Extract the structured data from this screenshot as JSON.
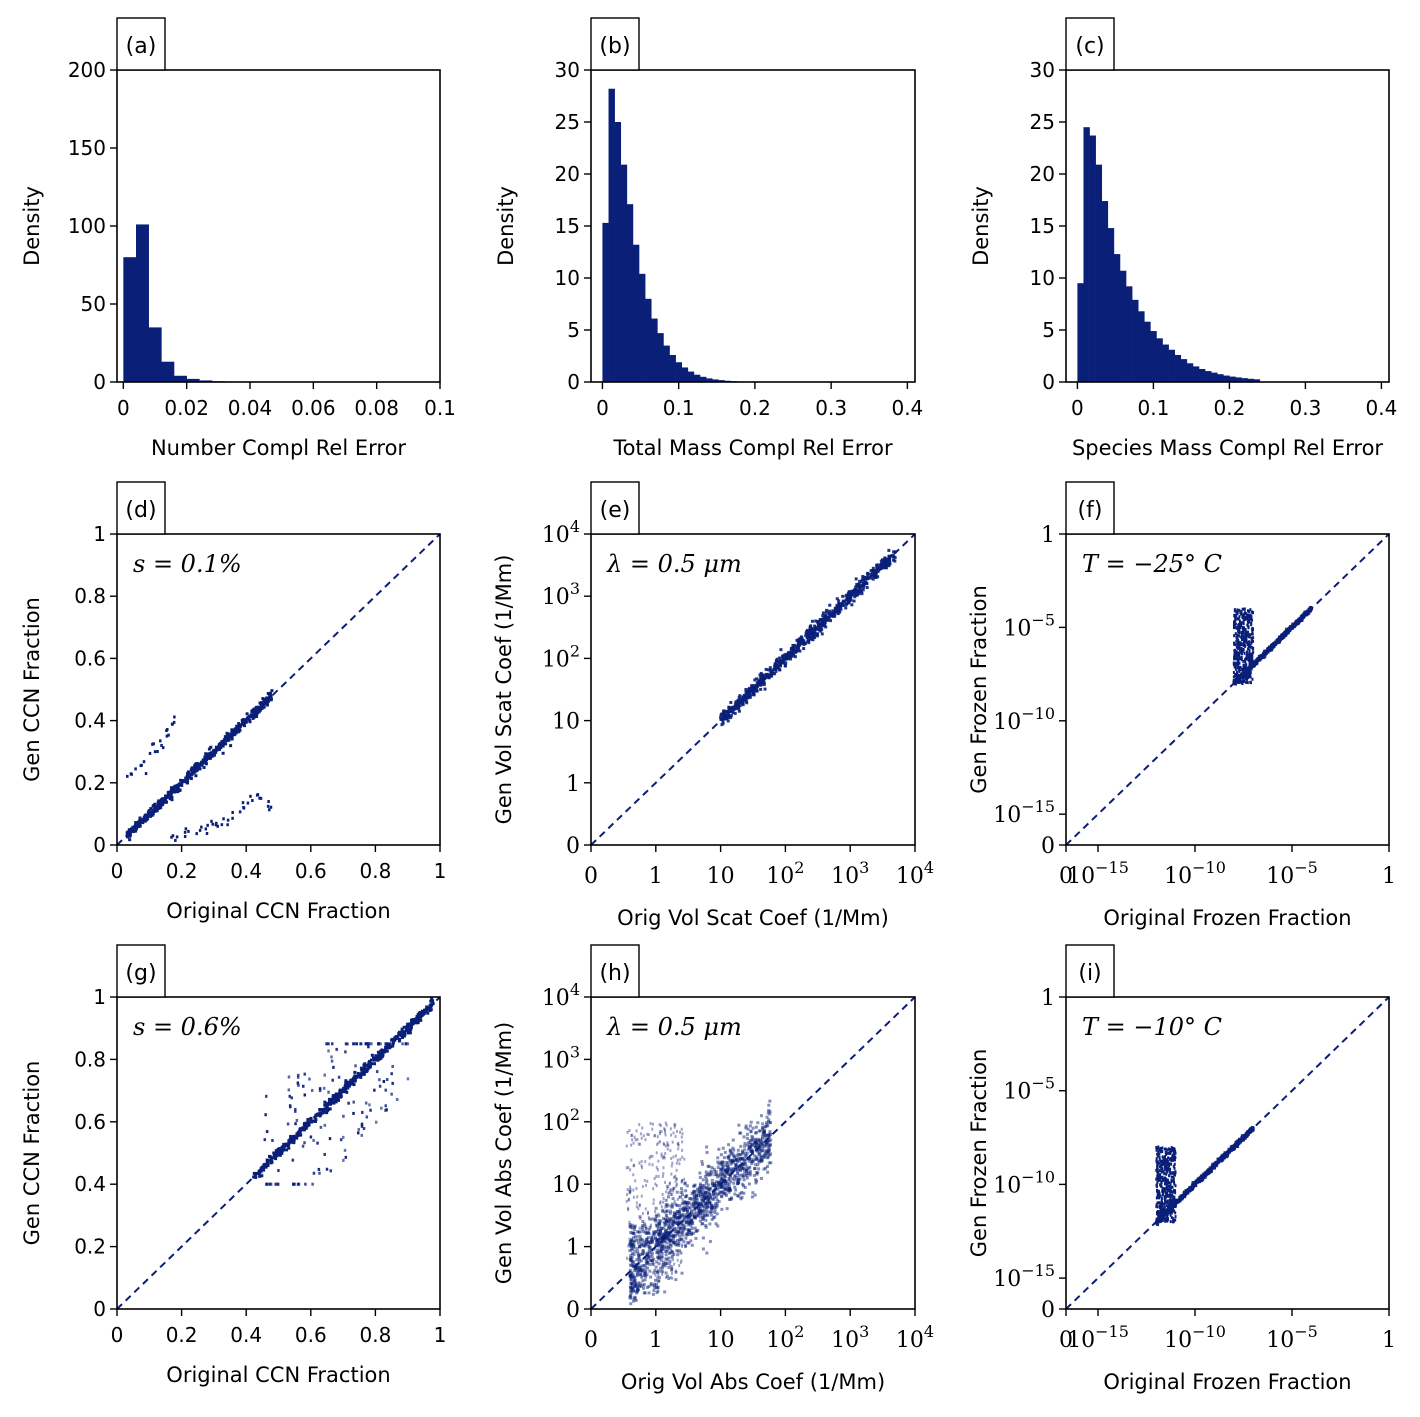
{
  "colors": {
    "series": "#0a1f78",
    "axis": "#000000",
    "background": "#ffffff"
  },
  "chart_data": [
    {
      "id": "a",
      "panel_label": "(a)",
      "type": "bar",
      "xlabel": "Number Compl Rel Error",
      "ylabel": "Density",
      "xlim": [
        -0.002,
        0.1
      ],
      "ylim": [
        0,
        200
      ],
      "xticks": [
        0,
        0.02,
        0.04,
        0.06,
        0.08,
        0.1
      ],
      "xtick_labels": [
        "0",
        "0.02",
        "0.04",
        "0.06",
        "0.08",
        "0.1"
      ],
      "yticks": [
        0,
        50,
        100,
        150,
        200
      ],
      "ytick_labels": [
        "0",
        "50",
        "100",
        "150",
        "200"
      ],
      "bin_width": 0.004,
      "bin_start": 0,
      "values": [
        80,
        101,
        35,
        13,
        4,
        2,
        1,
        0.5,
        0.3,
        0.2,
        0.1,
        0.1
      ]
    },
    {
      "id": "b",
      "panel_label": "(b)",
      "type": "bar",
      "xlabel": "Total Mass Compl Rel Error",
      "ylabel": "Density",
      "xlim": [
        -0.015,
        0.41
      ],
      "ylim": [
        0,
        30
      ],
      "xticks": [
        0,
        0.1,
        0.2,
        0.3,
        0.4
      ],
      "xtick_labels": [
        "0",
        "0.1",
        "0.2",
        "0.3",
        "0.4"
      ],
      "yticks": [
        0,
        5,
        10,
        15,
        20,
        25,
        30
      ],
      "ytick_labels": [
        "0",
        "5",
        "10",
        "15",
        "20",
        "25",
        "30"
      ],
      "bin_width": 0.008,
      "bin_start": 0,
      "values": [
        15.3,
        28.2,
        25.0,
        20.9,
        17.1,
        13.2,
        10.4,
        8.0,
        6.1,
        4.7,
        3.5,
        2.6,
        1.9,
        1.4,
        1.0,
        0.7,
        0.5,
        0.35,
        0.25,
        0.18,
        0.12,
        0.08,
        0.05,
        0.03
      ]
    },
    {
      "id": "c",
      "panel_label": "(c)",
      "type": "bar",
      "xlabel": "Species Mass Compl Rel Error",
      "ylabel": "Density",
      "xlim": [
        -0.015,
        0.41
      ],
      "ylim": [
        0,
        30
      ],
      "xticks": [
        0,
        0.1,
        0.2,
        0.3,
        0.4
      ],
      "xtick_labels": [
        "0",
        "0.1",
        "0.2",
        "0.3",
        "0.4"
      ],
      "yticks": [
        0,
        5,
        10,
        15,
        20,
        25,
        30
      ],
      "ytick_labels": [
        "0",
        "5",
        "10",
        "15",
        "20",
        "25",
        "30"
      ],
      "bin_width": 0.008,
      "bin_start": 0,
      "values": [
        9.5,
        24.5,
        23.7,
        20.9,
        17.4,
        14.8,
        12.3,
        10.7,
        9.2,
        7.9,
        6.8,
        5.8,
        4.9,
        4.2,
        3.6,
        3.1,
        2.6,
        2.2,
        1.8,
        1.5,
        1.25,
        1.05,
        0.9,
        0.75,
        0.62,
        0.52,
        0.44,
        0.37,
        0.31,
        0.26
      ]
    },
    {
      "id": "d",
      "panel_label": "(d)",
      "type": "scatter",
      "annotation": "s = 0.1%",
      "xlabel": "Original CCN Fraction",
      "ylabel": "Gen CCN Fraction",
      "xlim": [
        0,
        1
      ],
      "ylim": [
        0,
        1
      ],
      "xticks": [
        0,
        0.2,
        0.4,
        0.6,
        0.8,
        1
      ],
      "xtick_labels": [
        "0",
        "0.2",
        "0.4",
        "0.6",
        "0.8",
        "1"
      ],
      "yticks": [
        0,
        0.2,
        0.4,
        0.6,
        0.8,
        1
      ],
      "ytick_labels": [
        "0",
        "0.2",
        "0.4",
        "0.6",
        "0.8",
        "1"
      ],
      "reference_line": "y = x (dashed)",
      "main_band": {
        "x_range": [
          0.03,
          0.48
        ],
        "relation": "y ≈ x"
      },
      "clusters": [
        {
          "x": [
            0.05,
            0.08,
            0.11,
            0.13,
            0.15,
            0.17
          ],
          "y": [
            0.23,
            0.26,
            0.3,
            0.33,
            0.36,
            0.4
          ]
        },
        {
          "x": [
            0.18,
            0.22,
            0.25,
            0.28,
            0.31,
            0.35,
            0.38,
            0.41,
            0.44,
            0.48
          ],
          "y": [
            0.02,
            0.04,
            0.05,
            0.06,
            0.07,
            0.09,
            0.11,
            0.14,
            0.15,
            0.14
          ]
        }
      ]
    },
    {
      "id": "e",
      "panel_label": "(e)",
      "type": "scatter",
      "annotation": "λ = 0.5 μm",
      "xlabel": "Orig Vol Scat Coef (1/Mm)",
      "ylabel": "Gen Vol Scat Coef (1/Mm)",
      "xscale": "symlog",
      "yscale": "symlog",
      "xlim": [
        0,
        10000
      ],
      "ylim": [
        0,
        10000
      ],
      "xticks": [
        0,
        1,
        10,
        100,
        1000,
        10000
      ],
      "xtick_labels": [
        "0",
        "1",
        "10",
        "10^2",
        "10^3",
        "10^4"
      ],
      "yticks": [
        0,
        1,
        10,
        100,
        1000,
        10000
      ],
      "ytick_labels": [
        "0",
        "1",
        "10",
        "10^2",
        "10^3",
        "10^4"
      ],
      "reference_line": "y = x (dashed)",
      "main_band": {
        "x_range": [
          10,
          5000
        ],
        "relation": "y ≈ x"
      }
    },
    {
      "id": "f",
      "panel_label": "(f)",
      "type": "scatter",
      "annotation": "T = −25° C",
      "xlabel": "Original Frozen Fraction",
      "ylabel": "Gen Frozen Fraction",
      "xscale": "symlog",
      "yscale": "symlog",
      "xlim": [
        0,
        1
      ],
      "ylim": [
        0,
        1
      ],
      "xticks": [
        0,
        1e-15,
        1e-10,
        1e-05,
        1
      ],
      "xtick_labels": [
        "0",
        "10^−15",
        "10^−10",
        "10^−5",
        "1"
      ],
      "yticks": [
        0,
        1e-15,
        1e-10,
        1e-05,
        1
      ],
      "ytick_labels": [
        "0",
        "10^−15",
        "10^−10",
        "10^−5",
        "1"
      ],
      "reference_line": "y = x (dashed)",
      "main_band": {
        "x_range": [
          1e-08,
          0.0001
        ],
        "relation": "y ≈ x"
      },
      "vertical_cluster": {
        "x_range": [
          1e-08,
          1e-07
        ],
        "y_range": [
          1e-08,
          0.0001
        ]
      }
    },
    {
      "id": "g",
      "panel_label": "(g)",
      "type": "scatter",
      "annotation": "s = 0.6%",
      "xlabel": "Original CCN Fraction",
      "ylabel": "Gen CCN Fraction",
      "xlim": [
        0,
        1
      ],
      "ylim": [
        0,
        1
      ],
      "xticks": [
        0,
        0.2,
        0.4,
        0.6,
        0.8,
        1
      ],
      "xtick_labels": [
        "0",
        "0.2",
        "0.4",
        "0.6",
        "0.8",
        "1"
      ],
      "yticks": [
        0,
        0.2,
        0.4,
        0.6,
        0.8,
        1
      ],
      "ytick_labels": [
        "0",
        "0.2",
        "0.4",
        "0.6",
        "0.8",
        "1"
      ],
      "reference_line": "y = x (dashed)",
      "main_band": {
        "x_range": [
          0.42,
          0.98
        ],
        "relation": "y ≈ x"
      },
      "scatter_region": {
        "x_range": [
          0.45,
          0.9
        ],
        "y_range": [
          0.4,
          0.85
        ]
      }
    },
    {
      "id": "h",
      "panel_label": "(h)",
      "type": "scatter",
      "annotation": "λ = 0.5 μm",
      "xlabel": "Orig Vol Abs Coef (1/Mm)",
      "ylabel": "Gen Vol Abs Coef (1/Mm)",
      "xscale": "symlog",
      "yscale": "symlog",
      "xlim": [
        0,
        10000
      ],
      "ylim": [
        0,
        10000
      ],
      "xticks": [
        0,
        1,
        10,
        100,
        1000,
        10000
      ],
      "xtick_labels": [
        "0",
        "1",
        "10",
        "10^2",
        "10^3",
        "10^4"
      ],
      "yticks": [
        0,
        1,
        10,
        100,
        1000,
        10000
      ],
      "ytick_labels": [
        "0",
        "1",
        "10",
        "10^2",
        "10^3",
        "10^4"
      ],
      "reference_line": "y = x (dashed)",
      "main_band": {
        "x_range": [
          0.6,
          60
        ],
        "relation": "y ≈ x with wide scatter"
      }
    },
    {
      "id": "i",
      "panel_label": "(i)",
      "type": "scatter",
      "annotation": "T = −10° C",
      "xlabel": "Original Frozen Fraction",
      "ylabel": "Gen Frozen Fraction",
      "xscale": "symlog",
      "yscale": "symlog",
      "xlim": [
        0,
        1
      ],
      "ylim": [
        0,
        1
      ],
      "xticks": [
        0,
        1e-15,
        1e-10,
        1e-05,
        1
      ],
      "xtick_labels": [
        "0",
        "10^−15",
        "10^−10",
        "10^−5",
        "1"
      ],
      "yticks": [
        0,
        1e-15,
        1e-10,
        1e-05,
        1
      ],
      "ytick_labels": [
        "0",
        "10^−15",
        "10^−10",
        "10^−5",
        "1"
      ],
      "reference_line": "y = x (dashed)",
      "main_band": {
        "x_range": [
          1e-12,
          1e-07
        ],
        "relation": "y ≈ x"
      },
      "vertical_cluster": {
        "x_range": [
          1e-12,
          1e-11
        ],
        "y_range": [
          1e-12,
          1e-08
        ]
      }
    }
  ]
}
